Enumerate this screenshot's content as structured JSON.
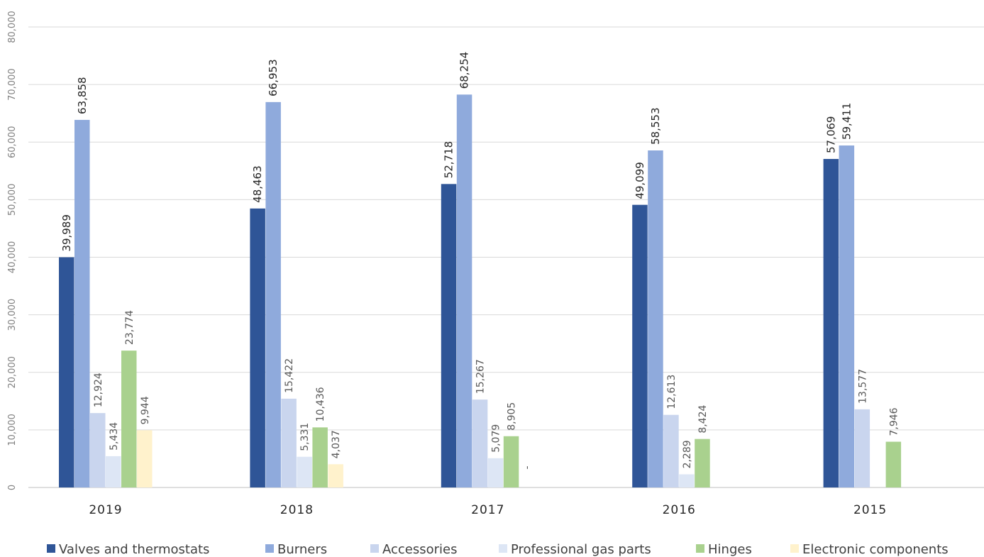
{
  "chart_data": {
    "type": "bar",
    "title": "",
    "xlabel": "",
    "ylabel": "",
    "ylim": [
      0,
      80000
    ],
    "yticks": [
      0,
      10000,
      20000,
      30000,
      40000,
      50000,
      60000,
      70000,
      80000
    ],
    "ytick_labels": [
      "0",
      "10,000",
      "20,000",
      "30,000",
      "40,000",
      "50,000",
      "60,000",
      "70,000",
      "80,000"
    ],
    "categories": [
      "2019",
      "2018",
      "2017",
      "2016",
      "2015"
    ],
    "grid": true,
    "legend_position": "bottom",
    "series": [
      {
        "name": "Valves and thermostats",
        "color": "#2f5597",
        "values": [
          39989,
          48463,
          52718,
          49099,
          57069
        ],
        "labels": [
          "39,989",
          "48,463",
          "52,718",
          "49,099",
          "57,069"
        ]
      },
      {
        "name": "Burners",
        "color": "#8faadc",
        "values": [
          63858,
          66953,
          68254,
          58553,
          59411
        ],
        "labels": [
          "63,858",
          "66,953",
          "68,254",
          "58,553",
          "59,411"
        ]
      },
      {
        "name": "Accessories",
        "color": "#c9d5ee",
        "values": [
          12924,
          15422,
          15267,
          12613,
          13577
        ],
        "labels": [
          "12,924",
          "15,422",
          "15,267",
          "12,613",
          "13,577"
        ]
      },
      {
        "name": "Professional gas parts",
        "color": "#dde6f5",
        "values": [
          5434,
          5331,
          5079,
          2289,
          null
        ],
        "labels": [
          "5,434",
          "5,331",
          "5,079",
          "2,289",
          ""
        ]
      },
      {
        "name": "Hinges",
        "color": "#a9d18e",
        "values": [
          23774,
          10436,
          8905,
          8424,
          7946
        ],
        "labels": [
          "23,774",
          "10,436",
          "8,905",
          "8,424",
          "7,946"
        ]
      },
      {
        "name": "Electronic components",
        "color": "#fff2cc",
        "values": [
          9944,
          4037,
          0,
          null,
          null
        ],
        "labels": [
          "9,944",
          "4,037",
          "-",
          "",
          ""
        ]
      }
    ]
  }
}
